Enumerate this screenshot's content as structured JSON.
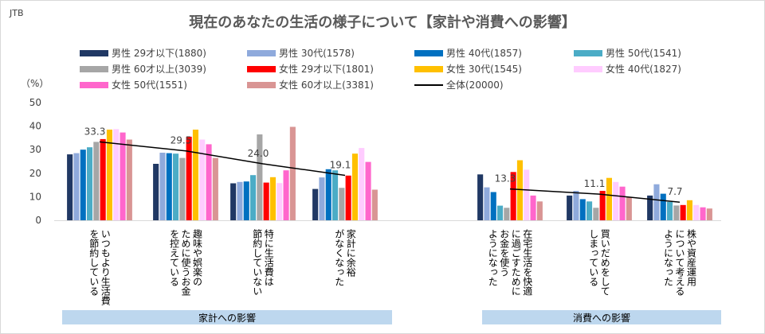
{
  "source": "JTB",
  "title": "現在のあなたの生活の様子について【家計や消費への影響】",
  "unit": "（%）",
  "legend": [
    {
      "label": "男性 29才以下(1880)",
      "color": "#203864"
    },
    {
      "label": "男性 30代(1578)",
      "color": "#8faadc"
    },
    {
      "label": "男性 40代(1857)",
      "color": "#0070c0"
    },
    {
      "label": "男性 50代(1541)",
      "color": "#4bacc6"
    },
    {
      "label": "男性 60才以上(3039)",
      "color": "#a6a6a6"
    },
    {
      "label": "女性 29才以下(1801)",
      "color": "#ff0000"
    },
    {
      "label": "女性 30代(1545)",
      "color": "#ffc000"
    },
    {
      "label": "女性 40代(1827)",
      "color": "#ffccff"
    },
    {
      "label": "女性 50代(1551)",
      "color": "#ff66cc"
    },
    {
      "label": "女性 60才以上(3381)",
      "color": "#d99594"
    },
    {
      "label": "全体(20000)",
      "color": "#000000"
    }
  ],
  "chart_data": {
    "type": "bar",
    "title": "現在のあなたの生活の様子について【家計や消費への影響】",
    "ylabel": "（%）",
    "ylim": [
      0,
      50
    ],
    "yticks": [
      0,
      10,
      20,
      30,
      40,
      50
    ],
    "grid": false,
    "legend_position": "top",
    "categories": [
      "いつもより生活費を節約している",
      "趣味や娯楽のために使うお金を控えている",
      "特に生活費は節約していない",
      "家計に余裕がなくなった",
      "在宅生活を快適に過ごすためにお金を使うようになった",
      "買いだめをしてしまっている",
      "株や資産運用について考えるようになった"
    ],
    "category_lines": [
      [
        "いつもより生活費",
        "を節約している"
      ],
      [
        "趣味や娯楽の",
        "ために使うお金",
        "を控えている"
      ],
      [
        "特に生活費は",
        "節約していない"
      ],
      [
        "家計に余裕",
        "がなくなった"
      ],
      [
        "在宅生活を快適",
        "に過ごすために",
        "お金を使う",
        "ようになった"
      ],
      [
        "買いだめをして",
        "しまっている"
      ],
      [
        "株や資産運用",
        "について考える",
        "ようになった"
      ]
    ],
    "groups": [
      {
        "label": "家計への影響",
        "categories": [
          0,
          1,
          2,
          3
        ]
      },
      {
        "label": "消費への影響",
        "categories": [
          4,
          5,
          6
        ]
      }
    ],
    "series": [
      {
        "name": "男性 29才以下(1880)",
        "values": [
          28,
          24,
          15.7,
          13.3,
          19.5,
          10.5,
          10.5
        ]
      },
      {
        "name": "男性 30代(1578)",
        "values": [
          28.5,
          28.7,
          16.3,
          18.2,
          14,
          12.5,
          15.3
        ]
      },
      {
        "name": "男性 40代(1857)",
        "values": [
          30,
          28.5,
          16.5,
          21.7,
          12,
          9,
          11.3
        ]
      },
      {
        "name": "男性 50代(1541)",
        "values": [
          31,
          28.3,
          19.2,
          21.2,
          6.2,
          8,
          7.8
        ]
      },
      {
        "name": "男性 60才以上(3039)",
        "values": [
          33.3,
          26.5,
          36.5,
          13.8,
          5.3,
          5.3,
          6.3
        ]
      },
      {
        "name": "女性 29才以下(1801)",
        "values": [
          34.5,
          35.5,
          16,
          19,
          20.5,
          12.5,
          6.5
        ]
      },
      {
        "name": "女性 30代(1545)",
        "values": [
          38.5,
          38.5,
          18.3,
          28.3,
          25.5,
          18,
          8.5
        ]
      },
      {
        "name": "女性 40代(1827)",
        "values": [
          38.7,
          34.3,
          15.8,
          30.7,
          21.5,
          16.3,
          6.5
        ]
      },
      {
        "name": "女性 50代(1551)",
        "values": [
          37.3,
          32.3,
          21.2,
          24.8,
          10.5,
          14.3,
          5.5
        ]
      },
      {
        "name": "女性 60才以上(3381)",
        "values": [
          34.3,
          26.5,
          39.7,
          13,
          8,
          9.8,
          5
        ]
      },
      {
        "name": "全体(20000)",
        "type": "line",
        "values": [
          33.3,
          29.5,
          24.0,
          19.1,
          13.3,
          11.1,
          7.7
        ]
      }
    ],
    "data_labels": [
      "33.3",
      "29.5",
      "24.0",
      "19.1",
      "13.3",
      "11.1",
      "7.7"
    ]
  }
}
